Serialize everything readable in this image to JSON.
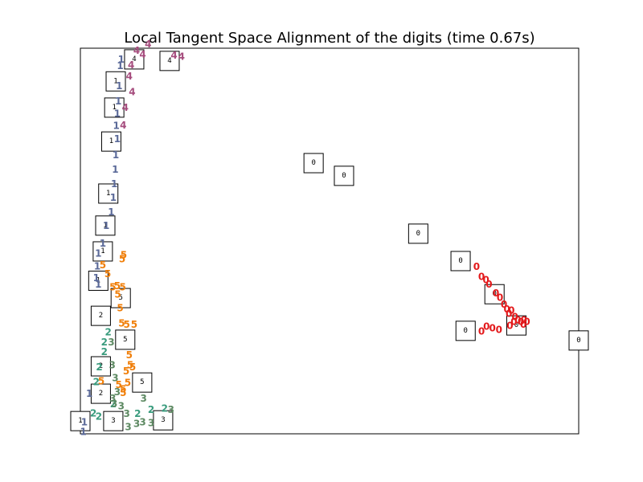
{
  "chart_data": {
    "type": "scatter",
    "title": "Local Tangent Space Alignment of the digits (time 0.67s)",
    "xlabel": "",
    "ylabel": "",
    "xlim": [
      0,
      100
    ],
    "ylim": [
      0,
      100
    ],
    "grid": false,
    "tick_labels": false,
    "colors": {
      "0": "#e31a1c",
      "1": "#5b6a99",
      "2": "#3a9c7e",
      "3": "#5e8a63",
      "4": "#a64d7e",
      "5": "#f07f0a"
    },
    "points": [
      {
        "label": "0",
        "x": 79.5,
        "y": 43.3
      },
      {
        "label": "0",
        "x": 80.5,
        "y": 40.7
      },
      {
        "label": "0",
        "x": 81.4,
        "y": 39.9
      },
      {
        "label": "0",
        "x": 82.0,
        "y": 38.7
      },
      {
        "label": "0",
        "x": 83.4,
        "y": 36.5
      },
      {
        "label": "0",
        "x": 84.2,
        "y": 35.3
      },
      {
        "label": "0",
        "x": 85.0,
        "y": 33.5
      },
      {
        "label": "0",
        "x": 85.6,
        "y": 32.3
      },
      {
        "label": "0",
        "x": 86.0,
        "y": 31.1
      },
      {
        "label": "0",
        "x": 86.5,
        "y": 32.0
      },
      {
        "label": "0",
        "x": 87.2,
        "y": 30.3
      },
      {
        "label": "0",
        "x": 87.8,
        "y": 29.5
      },
      {
        "label": "0",
        "x": 88.4,
        "y": 29.1
      },
      {
        "label": "0",
        "x": 89.0,
        "y": 29.5
      },
      {
        "label": "0",
        "x": 89.6,
        "y": 29.1
      },
      {
        "label": "0",
        "x": 87.0,
        "y": 29.1
      },
      {
        "label": "0",
        "x": 86.2,
        "y": 28.0
      },
      {
        "label": "0",
        "x": 88.9,
        "y": 28.3
      },
      {
        "label": "0",
        "x": 82.7,
        "y": 27.4
      },
      {
        "label": "0",
        "x": 81.5,
        "y": 27.8
      },
      {
        "label": "0",
        "x": 84.0,
        "y": 27.0
      },
      {
        "label": "0",
        "x": 80.5,
        "y": 26.6
      },
      {
        "label": "1",
        "x": 8.2,
        "y": 97.1
      },
      {
        "label": "1",
        "x": 8.0,
        "y": 95.4
      },
      {
        "label": "1",
        "x": 7.8,
        "y": 90.2
      },
      {
        "label": "1",
        "x": 7.6,
        "y": 86.2
      },
      {
        "label": "1",
        "x": 7.4,
        "y": 83.0
      },
      {
        "label": "1",
        "x": 7.2,
        "y": 79.9
      },
      {
        "label": "1",
        "x": 7.4,
        "y": 76.5
      },
      {
        "label": "1",
        "x": 7.1,
        "y": 72.3
      },
      {
        "label": "1",
        "x": 7.0,
        "y": 68.5
      },
      {
        "label": "1",
        "x": 6.8,
        "y": 64.8
      },
      {
        "label": "1",
        "x": 6.6,
        "y": 61.2
      },
      {
        "label": "1",
        "x": 6.2,
        "y": 57.5
      },
      {
        "label": "1",
        "x": 5.2,
        "y": 54.0
      },
      {
        "label": "1",
        "x": 4.5,
        "y": 49.4
      },
      {
        "label": "1",
        "x": 3.6,
        "y": 46.8
      },
      {
        "label": "1",
        "x": 3.4,
        "y": 43.4
      },
      {
        "label": "1",
        "x": 3.2,
        "y": 40.4
      },
      {
        "label": "1",
        "x": 3.6,
        "y": 38.8
      },
      {
        "label": "1",
        "x": 1.8,
        "y": 10.4
      },
      {
        "label": "1",
        "x": 0.8,
        "y": 3.0
      },
      {
        "label": "1",
        "x": 0.6,
        "y": 0.5
      },
      {
        "label": "4",
        "x": 13.6,
        "y": 101.0
      },
      {
        "label": "4",
        "x": 12.5,
        "y": 98.3
      },
      {
        "label": "4",
        "x": 11.3,
        "y": 99.4
      },
      {
        "label": "4",
        "x": 10.2,
        "y": 95.6
      },
      {
        "label": "4",
        "x": 9.8,
        "y": 92.7
      },
      {
        "label": "4",
        "x": 10.4,
        "y": 88.6
      },
      {
        "label": "4",
        "x": 9.0,
        "y": 84.6
      },
      {
        "label": "4",
        "x": 8.6,
        "y": 80.0
      },
      {
        "label": "4",
        "x": 20.3,
        "y": 97.8
      },
      {
        "label": "4",
        "x": 18.8,
        "y": 98.1
      },
      {
        "label": "5",
        "x": 8.7,
        "y": 46.4
      },
      {
        "label": "5",
        "x": 8.4,
        "y": 45.3
      },
      {
        "label": "5",
        "x": 5.5,
        "y": 41.5
      },
      {
        "label": "5",
        "x": 4.5,
        "y": 43.7
      },
      {
        "label": "5",
        "x": 6.5,
        "y": 38.0
      },
      {
        "label": "5",
        "x": 7.4,
        "y": 38.3
      },
      {
        "label": "5",
        "x": 8.5,
        "y": 38.0
      },
      {
        "label": "5",
        "x": 7.5,
        "y": 36.1
      },
      {
        "label": "5",
        "x": 8.0,
        "y": 32.6
      },
      {
        "label": "5",
        "x": 8.3,
        "y": 28.6
      },
      {
        "label": "5",
        "x": 9.3,
        "y": 28.3
      },
      {
        "label": "5",
        "x": 10.8,
        "y": 28.3
      },
      {
        "label": "5",
        "x": 9.8,
        "y": 20.4
      },
      {
        "label": "5",
        "x": 10.0,
        "y": 17.8
      },
      {
        "label": "5",
        "x": 10.5,
        "y": 17.3
      },
      {
        "label": "5",
        "x": 9.2,
        "y": 16.2
      },
      {
        "label": "5",
        "x": 9.5,
        "y": 13.2
      },
      {
        "label": "5",
        "x": 8.6,
        "y": 11.6
      },
      {
        "label": "5",
        "x": 7.7,
        "y": 12.7
      },
      {
        "label": "5",
        "x": 8.6,
        "y": 10.6
      },
      {
        "label": "5",
        "x": 4.2,
        "y": 13.6
      },
      {
        "label": "2",
        "x": 5.6,
        "y": 26.4
      },
      {
        "label": "2",
        "x": 4.8,
        "y": 23.7
      },
      {
        "label": "2",
        "x": 4.8,
        "y": 21.3
      },
      {
        "label": "2",
        "x": 3.8,
        "y": 17.3
      },
      {
        "label": "2",
        "x": 3.2,
        "y": 13.4
      },
      {
        "label": "2",
        "x": 6.6,
        "y": 7.7
      },
      {
        "label": "2",
        "x": 11.5,
        "y": 5.2
      },
      {
        "label": "2",
        "x": 14.2,
        "y": 6.2
      },
      {
        "label": "2",
        "x": 16.9,
        "y": 6.6
      },
      {
        "label": "2",
        "x": 2.6,
        "y": 5.3
      },
      {
        "label": "2",
        "x": 3.7,
        "y": 4.5
      },
      {
        "label": "3",
        "x": 6.2,
        "y": 23.7
      },
      {
        "label": "3",
        "x": 6.4,
        "y": 17.8
      },
      {
        "label": "3",
        "x": 7.0,
        "y": 14.5
      },
      {
        "label": "3",
        "x": 7.4,
        "y": 10.8
      },
      {
        "label": "3",
        "x": 6.5,
        "y": 9.2
      },
      {
        "label": "3",
        "x": 6.8,
        "y": 7.8
      },
      {
        "label": "3",
        "x": 8.2,
        "y": 7.2
      },
      {
        "label": "3",
        "x": 9.3,
        "y": 5.2
      },
      {
        "label": "3",
        "x": 11.3,
        "y": 2.6
      },
      {
        "label": "3",
        "x": 12.5,
        "y": 3.0
      },
      {
        "label": "3",
        "x": 12.7,
        "y": 9.2
      },
      {
        "label": "3",
        "x": 14.2,
        "y": 2.8
      },
      {
        "label": "3",
        "x": 18.2,
        "y": 6.2
      },
      {
        "label": "3",
        "x": 9.6,
        "y": 1.8
      }
    ],
    "thumbnails": [
      {
        "digit": "4",
        "x": 10.8,
        "y": 97.1
      },
      {
        "digit": "4",
        "x": 17.9,
        "y": 96.7
      },
      {
        "digit": "1",
        "x": 7.1,
        "y": 91.4
      },
      {
        "digit": "1",
        "x": 6.8,
        "y": 84.6
      },
      {
        "digit": "1",
        "x": 6.2,
        "y": 75.8
      },
      {
        "digit": "1",
        "x": 5.6,
        "y": 62.3
      },
      {
        "digit": "1",
        "x": 5.0,
        "y": 54.0
      },
      {
        "digit": "1",
        "x": 4.5,
        "y": 47.3
      },
      {
        "digit": "1",
        "x": 3.6,
        "y": 39.7
      },
      {
        "digit": "5",
        "x": 8.1,
        "y": 35.2
      },
      {
        "digit": "2",
        "x": 4.1,
        "y": 30.6
      },
      {
        "digit": "5",
        "x": 9.0,
        "y": 24.4
      },
      {
        "digit": "2",
        "x": 4.1,
        "y": 17.5
      },
      {
        "digit": "5",
        "x": 12.4,
        "y": 13.3
      },
      {
        "digit": "2",
        "x": 4.1,
        "y": 10.4
      },
      {
        "digit": "1",
        "x": 0.0,
        "y": 3.3
      },
      {
        "digit": "3",
        "x": 6.6,
        "y": 3.3
      },
      {
        "digit": "3",
        "x": 16.6,
        "y": 3.5
      },
      {
        "digit": "0",
        "x": 46.8,
        "y": 70.2
      },
      {
        "digit": "0",
        "x": 52.9,
        "y": 66.9
      },
      {
        "digit": "0",
        "x": 67.8,
        "y": 51.9
      },
      {
        "digit": "0",
        "x": 76.3,
        "y": 44.8
      },
      {
        "digit": "0",
        "x": 83.1,
        "y": 36.2
      },
      {
        "digit": "0",
        "x": 77.3,
        "y": 26.7
      },
      {
        "digit": "0",
        "x": 87.5,
        "y": 28.1
      },
      {
        "digit": "0",
        "x": 100.0,
        "y": 24.2
      }
    ]
  }
}
